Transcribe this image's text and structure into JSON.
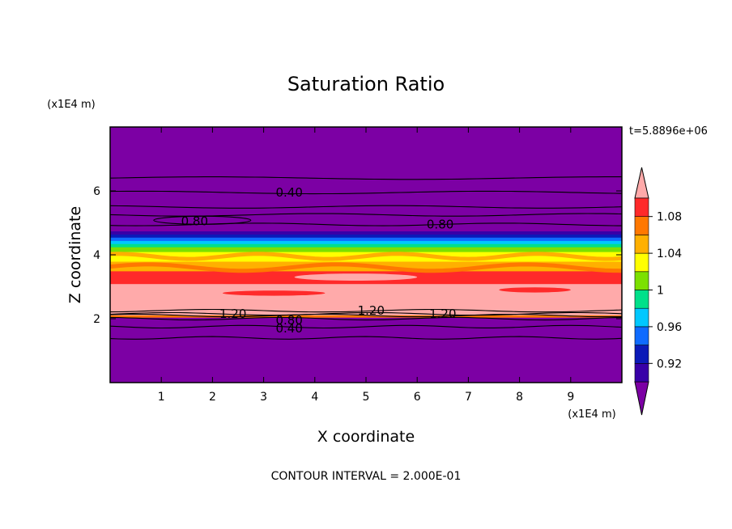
{
  "chart_data": {
    "type": "heatmap",
    "title": "Saturation Ratio",
    "xlabel": "X coordinate",
    "ylabel": "Z coordinate",
    "x_unit": "(x1E4 m)",
    "y_unit": "(x1E4 m)",
    "time_label": "t=5.8896e+06",
    "contour_interval_text": "CONTOUR INTERVAL = 2.000E-01",
    "xlim": [
      0,
      10
    ],
    "ylim": [
      0,
      8
    ],
    "x_ticks": [
      1,
      2,
      3,
      4,
      5,
      6,
      7,
      8,
      9
    ],
    "y_ticks": [
      2,
      4,
      6
    ],
    "colorbar": {
      "levels": [
        0.9,
        0.92,
        0.94,
        0.96,
        0.98,
        1.0,
        1.02,
        1.04,
        1.06,
        1.08,
        1.1
      ],
      "colors": [
        "#7c00a4",
        "#3800a8",
        "#0b1ab8",
        "#0f6bff",
        "#00c8ff",
        "#00e08a",
        "#7ce000",
        "#ffff00",
        "#ffb000",
        "#ff7800",
        "#ff2a2a",
        "#ffaaaa"
      ],
      "tick_labels": [
        "0.92",
        "0.96",
        "1",
        "1.04",
        "1.08"
      ],
      "tick_values": [
        0.92,
        0.96,
        1.0,
        1.04,
        1.08
      ],
      "extend": "both"
    },
    "bands": [
      {
        "z0": 0.0,
        "z1": 2.05,
        "value": "below 0.9",
        "color_index": 0
      },
      {
        "z0": 2.05,
        "z1": 2.12,
        "value": "1.06-1.08",
        "color_index": 9
      },
      {
        "z0": 2.12,
        "z1": 3.1,
        "value": "above 1.1",
        "color_index": 11
      },
      {
        "z0": 3.1,
        "z1": 3.5,
        "value": "1.08-1.1",
        "color_index": 10
      },
      {
        "z0": 3.5,
        "z1": 3.8,
        "value": "1.04-1.06",
        "color_index": 8
      },
      {
        "z0": 3.8,
        "z1": 4.1,
        "value": "1.02-1.04",
        "color_index": 7
      },
      {
        "z0": 4.1,
        "z1": 4.25,
        "value": "1.0-1.02",
        "color_index": 6
      },
      {
        "z0": 4.25,
        "z1": 4.35,
        "value": "0.98-1.0",
        "color_index": 5
      },
      {
        "z0": 4.35,
        "z1": 4.45,
        "value": "0.96-0.98",
        "color_index": 4
      },
      {
        "z0": 4.45,
        "z1": 4.55,
        "value": "0.94-0.96",
        "color_index": 3
      },
      {
        "z0": 4.55,
        "z1": 4.65,
        "value": "0.92-0.94",
        "color_index": 2
      },
      {
        "z0": 4.65,
        "z1": 4.75,
        "value": "0.9-0.92",
        "color_index": 1
      },
      {
        "z0": 4.75,
        "z1": 8.0,
        "value": "below 0.9",
        "color_index": 0
      }
    ],
    "contours": [
      {
        "z": 6.4
      },
      {
        "z": 5.95
      },
      {
        "z": 5.5
      },
      {
        "z": 5.25
      },
      {
        "z": 4.95
      },
      {
        "z": 2.25
      },
      {
        "z": 2.15
      },
      {
        "z": 2.1
      },
      {
        "z": 2.0
      },
      {
        "z": 1.75
      },
      {
        "z": 1.4
      }
    ],
    "contour_labels": [
      {
        "text": "0.40",
        "x": 3.5,
        "z": 5.95
      },
      {
        "text": "0.80",
        "x": 1.65,
        "z": 5.05
      },
      {
        "text": "0.80",
        "x": 6.45,
        "z": 4.95
      },
      {
        "text": "1.20",
        "x": 2.4,
        "z": 2.15
      },
      {
        "text": "1.20",
        "x": 5.1,
        "z": 2.25
      },
      {
        "text": "1.20",
        "x": 6.5,
        "z": 2.15
      },
      {
        "text": "0.80",
        "x": 3.5,
        "z": 1.95
      },
      {
        "text": "0.40",
        "x": 3.5,
        "z": 1.7
      }
    ]
  }
}
